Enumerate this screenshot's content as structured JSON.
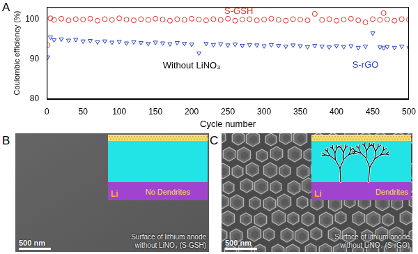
{
  "chart_data": {
    "type": "scatter",
    "panel_label": "A",
    "x_label": "Cycle number",
    "y_label": "Coulombic efficiency (%)",
    "xlim": [
      0,
      500
    ],
    "xticks": [
      0,
      50,
      100,
      150,
      200,
      250,
      300,
      350,
      400,
      450,
      500
    ],
    "ylim": [
      80,
      103
    ],
    "yticks": [
      80,
      90,
      100
    ],
    "grid": false,
    "x": [
      1,
      5,
      10,
      20,
      30,
      40,
      50,
      60,
      70,
      80,
      90,
      100,
      110,
      120,
      130,
      140,
      150,
      160,
      170,
      180,
      190,
      200,
      210,
      220,
      230,
      240,
      250,
      260,
      270,
      280,
      290,
      300,
      310,
      320,
      330,
      340,
      350,
      360,
      370,
      380,
      390,
      400,
      410,
      420,
      430,
      440,
      450,
      460,
      465,
      470,
      480,
      490,
      500
    ],
    "series": [
      {
        "name": "S-GSH",
        "color": "#e0302a",
        "marker": "circle",
        "values": [
          93.5,
          100.2,
          99.8,
          100.1,
          99.7,
          100.0,
          99.9,
          100.1,
          99.6,
          100.0,
          99.8,
          100.2,
          99.9,
          99.7,
          100.0,
          99.8,
          100.1,
          99.9,
          99.6,
          100.0,
          99.8,
          100.1,
          99.9,
          99.7,
          100.0,
          99.8,
          100.1,
          99.6,
          99.9,
          100.0,
          99.7,
          99.9,
          100.1,
          99.8,
          99.6,
          100.0,
          99.9,
          99.7,
          101.3,
          99.8,
          100.0,
          99.6,
          99.9,
          100.1,
          99.7,
          99.2,
          100.0,
          99.8,
          101.5,
          99.9,
          99.6,
          100.0,
          99.8
        ]
      },
      {
        "name": "S-rGO",
        "color": "#2b3fc7",
        "marker": "triangle_down",
        "values": [
          90.5,
          95.5,
          94.8,
          95.0,
          94.7,
          94.9,
          94.5,
          94.6,
          94.3,
          94.5,
          94.2,
          94.4,
          94.0,
          94.3,
          94.1,
          93.9,
          94.2,
          94.0,
          93.8,
          94.1,
          93.9,
          93.7,
          91.5,
          93.9,
          93.6,
          93.8,
          93.5,
          93.7,
          93.4,
          93.6,
          93.5,
          93.3,
          93.6,
          93.4,
          93.2,
          93.5,
          93.3,
          93.1,
          93.4,
          93.2,
          93.0,
          93.3,
          93.1,
          93.3,
          92.9,
          93.2,
          96.5,
          93.0,
          92.8,
          93.1,
          92.9,
          93.2,
          92.8
        ]
      }
    ],
    "annotations": [
      {
        "text": "S-GSH",
        "x": 265,
        "y": 101.9,
        "color": "#e0302a"
      },
      {
        "text": "Without LiNO₃",
        "x": 200,
        "y": 88.3,
        "color": "#000000"
      },
      {
        "text": "S-rGO",
        "x": 440,
        "y": 88.4,
        "color": "#2b3fc7"
      }
    ]
  },
  "images": [
    {
      "panel_label": "B",
      "dendrites": false,
      "inset_label": "No Dendrites",
      "inset_electrode": "Li",
      "caption": "Surface of lithium anode without LiNO₃ (S-GSH)",
      "scale_bar": "500 nm"
    },
    {
      "panel_label": "C",
      "dendrites": true,
      "inset_label": "Dendrites",
      "inset_electrode": "Li",
      "caption": "Surface of lithium anode without LiNO₃ (S-rGO)",
      "scale_bar": "500 nm"
    }
  ]
}
